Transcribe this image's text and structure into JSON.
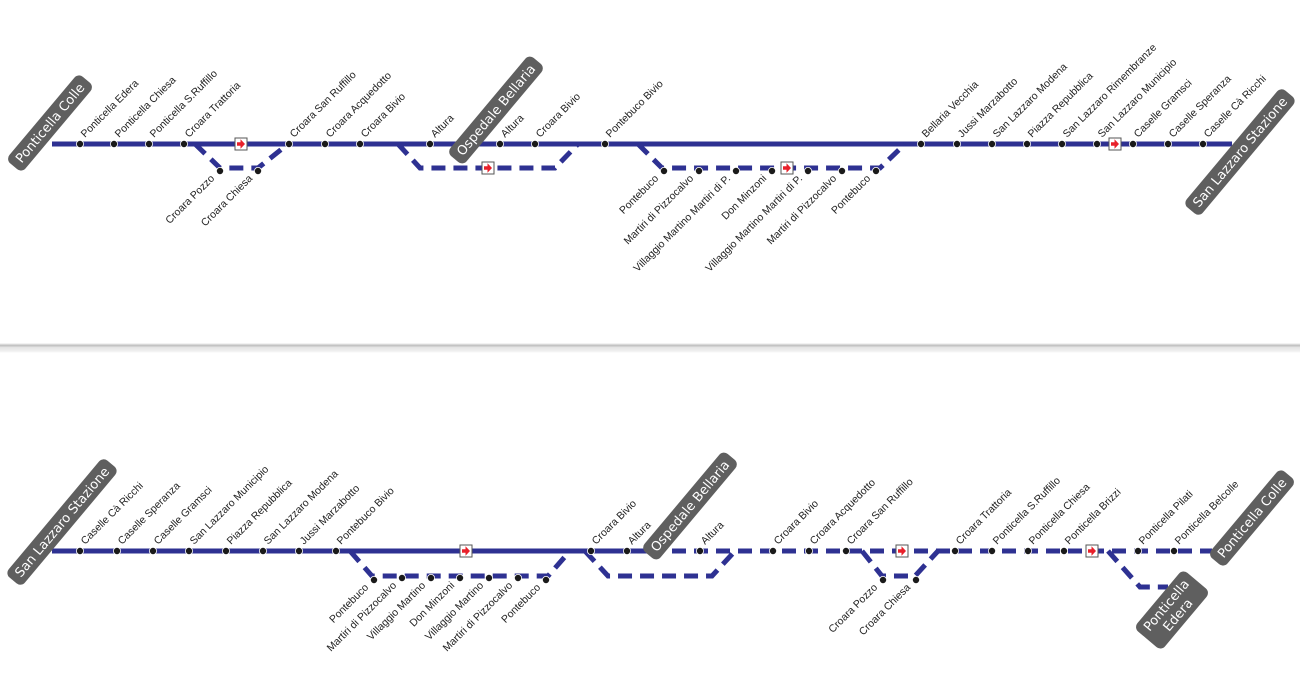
{
  "colors": {
    "line": "#2e3192",
    "stop": "#1a1a1a",
    "terminal_bg": "#5f5f5f",
    "terminal_text": "#ffffff",
    "arrow": "#e8202a"
  },
  "icons": {
    "direction_marker": "arrow-right-icon"
  },
  "diagrams": [
    {
      "direction": "Ponticella Colle → San Lazzaro Stazione",
      "terminals": [
        "Ponticella Colle",
        "Ospedale Bellaria",
        "San Lazzaro Stazione"
      ],
      "main_stops": [
        "Ponticella Edera",
        "Ponticella Chiesa",
        "Ponticella S.Ruffillo",
        "Croara Trattoria",
        "Croara San Ruffillo",
        "Croara Acquedotto",
        "Croara Bivio",
        "Altura",
        "Altura",
        "Croara Bivio",
        "Pontebuco Bivio",
        "Bellaria Vecchia",
        "Jussi Marzabotto",
        "San Lazzaro Modena",
        "Piazza Repubblica",
        "San Lazzaro Rimembranze",
        "San Lazzaro Municipio",
        "Caselle Gramsci",
        "Caselle Speranza",
        "Caselle Cà Ricchi"
      ],
      "branch_stops": [
        "Croara Pozzo",
        "Croara Chiesa",
        "Pontebuco",
        "Martiri di Pizzocalvo",
        "Villaggio Martino Martiri di P.",
        "Don Minzoni",
        "Villaggio Martino Martiri di P.",
        "Martiri di Pizzocalvo",
        "Pontebuco"
      ]
    },
    {
      "direction": "San Lazzaro Stazione → Ponticella Colle",
      "terminals": [
        "San Lazzaro Stazione",
        "Ospedale Bellaria",
        "Ponticella Colle",
        "Ponticella Edera"
      ],
      "main_stops": [
        "Caselle Cà Ricchi",
        "Caselle Speranza",
        "Caselle Gramsci",
        "San Lazzaro Municipio",
        "Piazza Repubblica",
        "San Lazzaro Modena",
        "Jussi Marzabotto",
        "Pontebuco Bivio",
        "Croara Bivio",
        "Altura",
        "Altura",
        "Croara Bivio",
        "Croara Acquedotto",
        "Croara San Ruffillo",
        "Croara Trattoria",
        "Ponticella S.Ruffillo",
        "Ponticella Chiesa",
        "Ponticella Brizzi",
        "Ponticella Pilati",
        "Ponticella Belcolle"
      ],
      "branch_stops": [
        "Pontebuco",
        "Martiri di Pizzocalvo",
        "Villaggio Martino",
        "Don Minzoni",
        "Villaggio Martino",
        "Martiri di Pizzocalvo",
        "Pontebuco",
        "Croara Pozzo",
        "Croara Chiesa"
      ]
    }
  ]
}
